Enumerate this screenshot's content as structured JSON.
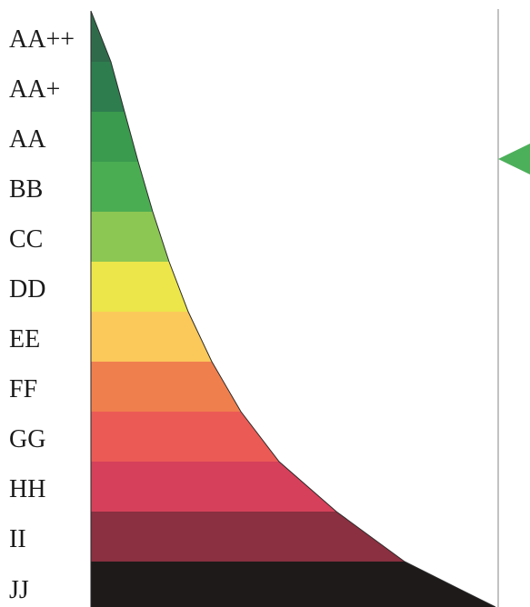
{
  "scale": {
    "bands": [
      {
        "label": "AA++",
        "color": "#2f6b4a"
      },
      {
        "label": "AA+",
        "color": "#2e7d4f"
      },
      {
        "label": "AA",
        "color": "#3a9a4e"
      },
      {
        "label": "BB",
        "color": "#4bad52"
      },
      {
        "label": "CC",
        "color": "#8cc653"
      },
      {
        "label": "DD",
        "color": "#ece64b"
      },
      {
        "label": "EE",
        "color": "#fbc95a"
      },
      {
        "label": "FF",
        "color": "#f07f4e"
      },
      {
        "label": "GG",
        "color": "#eb5a55"
      },
      {
        "label": "HH",
        "color": "#d6405a"
      },
      {
        "label": "II",
        "color": "#8a3040"
      },
      {
        "label": "JJ",
        "color": "#1e1a1a"
      }
    ]
  },
  "indicator": {
    "band": "AA",
    "color": "#4cb05a",
    "icon": "triangle-pointer-icon"
  },
  "divider_color": "#9a9a9a"
}
